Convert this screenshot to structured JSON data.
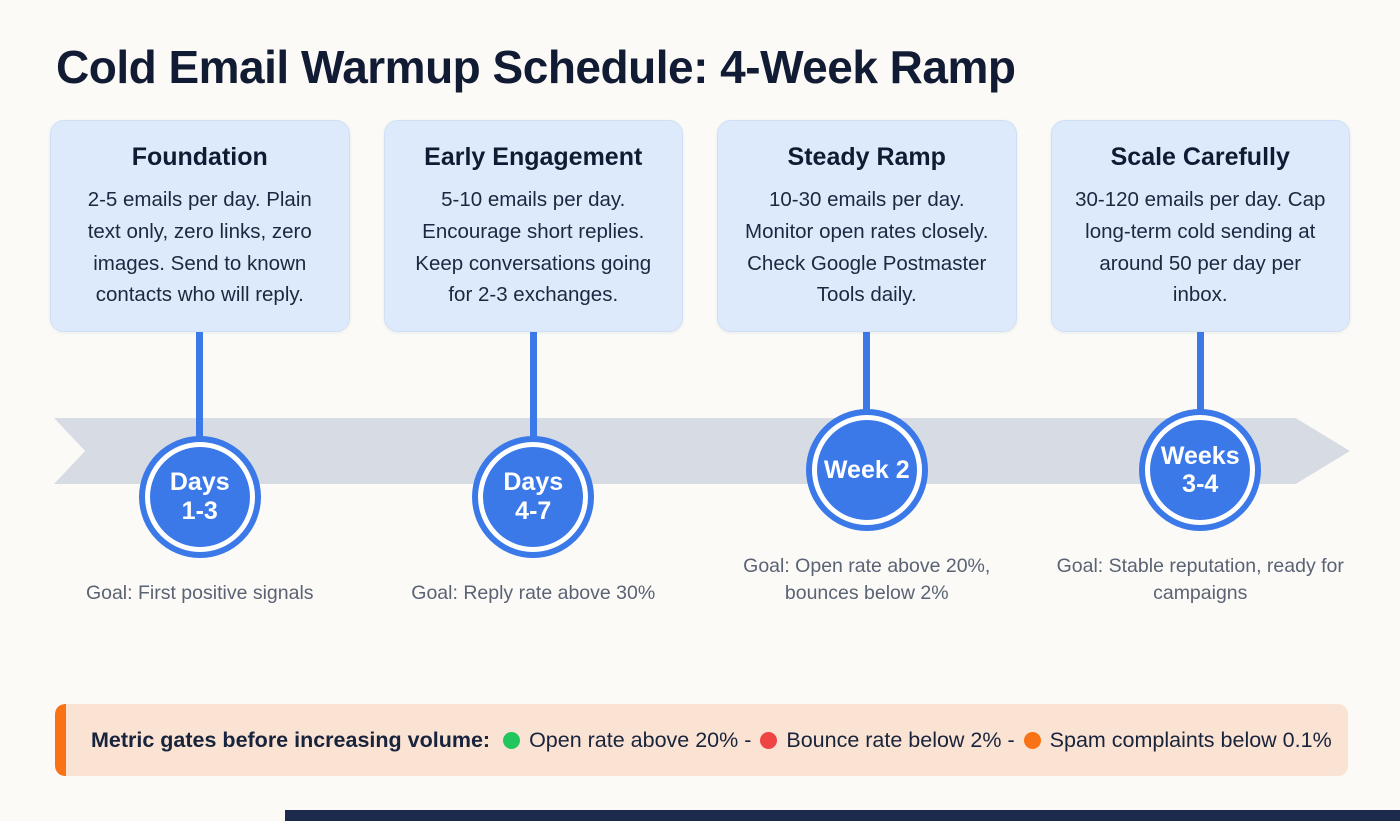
{
  "page": {
    "title": "Cold Email Warmup Schedule: 4-Week Ramp"
  },
  "stages": [
    {
      "title": "Foundation",
      "body": "2-5 emails per day. Plain text only, zero links, zero images. Send to known contacts who will reply.",
      "marker_line1": "Days",
      "marker_line2": "1-3",
      "goal": "Goal: First positive signals"
    },
    {
      "title": "Early Engagement",
      "body": "5-10 emails per day. Encourage short replies. Keep conversations going for 2-3 exchanges.",
      "marker_line1": "Days",
      "marker_line2": "4-7",
      "goal": "Goal: Reply rate above 30%"
    },
    {
      "title": "Steady Ramp",
      "body": "10-30 emails per day. Monitor open rates closely. Check Google Postmaster Tools daily.",
      "marker_line1": "Week 2",
      "marker_line2": "",
      "goal": "Goal: Open rate above 20%, bounces below 2%"
    },
    {
      "title": "Scale Carefully",
      "body": "30-120 emails per day. Cap long-term cold sending at around 50 per day per inbox.",
      "marker_line1": "Weeks",
      "marker_line2": "3-4",
      "goal": "Goal: Stable reputation, ready for campaigns"
    }
  ],
  "banner": {
    "label": "Metric gates before increasing volume:",
    "items": [
      {
        "color": "#22c55e",
        "text": "Open rate above 20% -"
      },
      {
        "color": "#ef4444",
        "text": "Bounce rate below 2% -"
      },
      {
        "color": "#f97316",
        "text": "Spam complaints below 0.1%"
      }
    ]
  },
  "colors": {
    "accent_blue": "#3b79e8",
    "card_bg": "#ddeafc",
    "arrow_gray": "#d7dbe3",
    "banner_bg": "#fbe3d4",
    "banner_accent": "#f97316",
    "title_navy": "#111b33",
    "footer_navy": "#1c2b4d"
  }
}
